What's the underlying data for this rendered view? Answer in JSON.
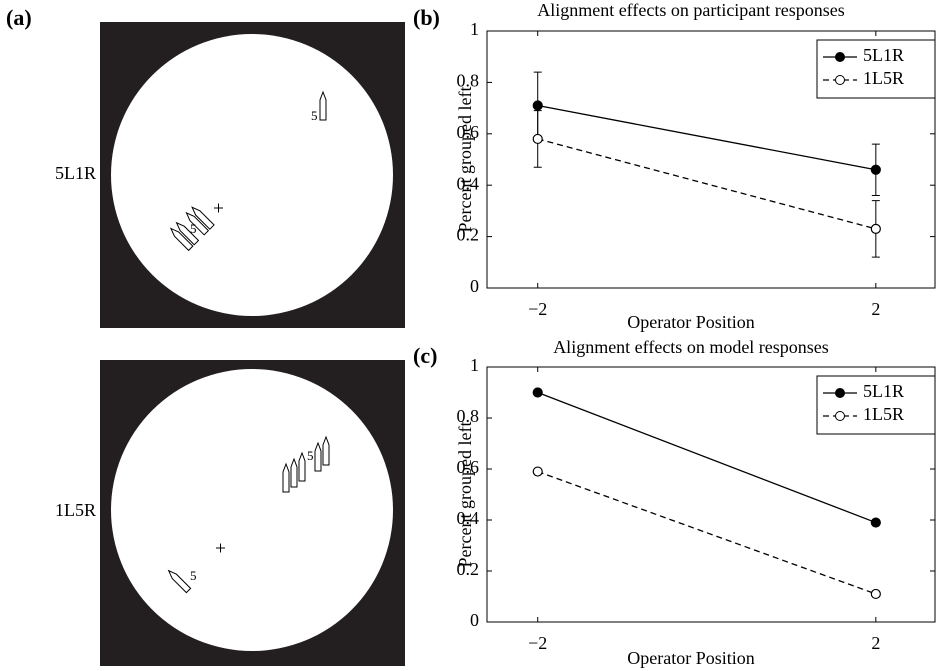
{
  "figure": {
    "panel_label": "(a)",
    "stimuli": [
      {
        "label": "5L1R",
        "digits": [
          5,
          5
        ]
      },
      {
        "label": "1L5R",
        "digits": [
          5,
          5
        ]
      }
    ]
  },
  "chart_data": [
    {
      "type": "line",
      "panel_label": "(b)",
      "title": "Alignment effects on participant responses",
      "xlabel": "Operator Position",
      "ylabel": "Percent grouped left",
      "x": [
        -2,
        2
      ],
      "xlim": [
        -2.6,
        2.7
      ],
      "xticks": [
        {
          "value": -2,
          "label": "−2"
        },
        2
      ],
      "ylim": [
        0,
        1
      ],
      "yticks": [
        0,
        0.2,
        0.4,
        0.6,
        0.8,
        1
      ],
      "legend": "upper right",
      "series": [
        {
          "name": "5L1R",
          "color": "#000000",
          "fill": "#000000",
          "dash": false,
          "values": [
            0.71,
            0.46
          ],
          "errors": [
            0.13,
            0.1
          ]
        },
        {
          "name": "1L5R",
          "color": "#000000",
          "fill": "#ffffff",
          "dash": true,
          "values": [
            0.58,
            0.23
          ],
          "errors": [
            0.11,
            0.11
          ]
        }
      ]
    },
    {
      "type": "line",
      "panel_label": "(c)",
      "title": "Alignment effects on model responses",
      "xlabel": "Operator Position",
      "ylabel": "Percent grouped left",
      "x": [
        -2,
        2
      ],
      "xlim": [
        -2.6,
        2.7
      ],
      "xticks": [
        {
          "value": -2,
          "label": "−2"
        },
        2
      ],
      "ylim": [
        0,
        1
      ],
      "yticks": [
        0,
        0.2,
        0.4,
        0.6,
        0.8,
        1
      ],
      "legend": "upper right",
      "series": [
        {
          "name": "5L1R",
          "color": "#000000",
          "fill": "#000000",
          "dash": false,
          "values": [
            0.9,
            0.39
          ]
        },
        {
          "name": "1L5R",
          "color": "#000000",
          "fill": "#ffffff",
          "dash": true,
          "values": [
            0.59,
            0.11
          ]
        }
      ]
    }
  ]
}
